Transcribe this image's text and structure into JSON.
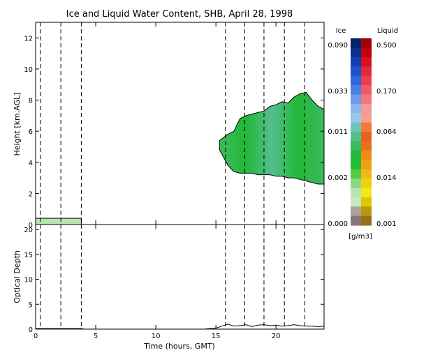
{
  "chart_data": {
    "title": "Ice and Liquid Water Content, SHB, April 28, 1998",
    "top_panel": {
      "type": "heatmap",
      "ylabel": "Height [km,AGL]",
      "xlim": [
        0,
        24
      ],
      "ylim": [
        0,
        13
      ],
      "xticks": [
        0,
        5,
        10,
        15,
        20
      ],
      "yticks": [
        0,
        2,
        4,
        6,
        8,
        10,
        12
      ],
      "ytick_labels": [
        "0",
        "2",
        "4",
        "6",
        "8",
        "10",
        "12"
      ],
      "dashed_times": [
        0.4,
        2.1,
        3.8,
        15.8,
        17.4,
        19.0,
        20.7,
        22.4
      ],
      "cloud_outline_top_km": [
        [
          15.3,
          5.4
        ],
        [
          16.0,
          5.8
        ],
        [
          16.5,
          6.0
        ],
        [
          17.0,
          6.8
        ],
        [
          17.5,
          7.0
        ],
        [
          18.0,
          7.1
        ],
        [
          18.5,
          7.2
        ],
        [
          19.0,
          7.3
        ],
        [
          19.5,
          7.6
        ],
        [
          20.0,
          7.7
        ],
        [
          20.5,
          7.9
        ],
        [
          21.0,
          7.8
        ],
        [
          21.5,
          8.2
        ],
        [
          22.0,
          8.4
        ],
        [
          22.5,
          8.5
        ],
        [
          23.0,
          8.0
        ],
        [
          23.5,
          7.6
        ],
        [
          24.0,
          7.4
        ]
      ],
      "cloud_outline_base_km": [
        [
          15.3,
          4.8
        ],
        [
          16.0,
          3.8
        ],
        [
          16.5,
          3.4
        ],
        [
          17.0,
          3.3
        ],
        [
          17.5,
          3.3
        ],
        [
          18.0,
          3.3
        ],
        [
          18.5,
          3.2
        ],
        [
          19.0,
          3.2
        ],
        [
          19.5,
          3.2
        ],
        [
          20.0,
          3.1
        ],
        [
          20.5,
          3.1
        ],
        [
          21.0,
          3.0
        ],
        [
          21.5,
          3.0
        ],
        [
          22.0,
          2.9
        ],
        [
          22.5,
          2.8
        ],
        [
          23.0,
          2.7
        ],
        [
          23.5,
          2.6
        ],
        [
          24.0,
          2.6
        ]
      ],
      "low_cloud_km": {
        "start": 0.0,
        "end": 3.8,
        "base": 0.0,
        "top": 0.4
      }
    },
    "bottom_panel": {
      "type": "line",
      "ylabel": "Optical Depth",
      "xlabel": "Time (hours, GMT)",
      "xlim": [
        0,
        24
      ],
      "ylim": [
        0,
        21
      ],
      "xticks": [
        0,
        5,
        10,
        15,
        20
      ],
      "xtick_labels": [
        "0",
        "5",
        "10",
        "15",
        "20"
      ],
      "yticks": [
        0,
        5,
        10,
        15,
        20
      ],
      "ytick_labels": [
        "0",
        "5",
        "10",
        "15",
        "20"
      ],
      "x": [
        0,
        1,
        2,
        3,
        3.8,
        4,
        14,
        15,
        15.5,
        16,
        16.5,
        17,
        17.5,
        18,
        18.5,
        19,
        19.5,
        20,
        20.5,
        21,
        21.5,
        22,
        22.5,
        23,
        23.5,
        24
      ],
      "y": [
        0.1,
        0.1,
        0.1,
        0.1,
        0.1,
        0.0,
        0.0,
        0.2,
        0.6,
        1.0,
        0.6,
        0.7,
        0.9,
        0.5,
        0.8,
        0.9,
        0.7,
        0.8,
        0.6,
        0.7,
        0.9,
        0.7,
        0.6,
        0.6,
        0.5,
        0.6
      ]
    },
    "colorbar": {
      "ice_label": "Ice",
      "liquid_label": "Liquid",
      "units": "[g/m3]",
      "ice_tick_labels": [
        "0.090",
        "0.033",
        "0.011",
        "0.002",
        "0.000"
      ],
      "liquid_tick_labels": [
        "0.500",
        "0.170",
        "0.064",
        "0.014",
        "0.001"
      ],
      "ice_colors": [
        "#002266",
        "#0a2f8c",
        "#1240b0",
        "#1e52c8",
        "#2f66d8",
        "#4a7fe0",
        "#6a9ae8",
        "#8ab5ee",
        "#98c8e8",
        "#6fc6b8",
        "#54be8c",
        "#3cba5e",
        "#22b838",
        "#1fc030",
        "#50cc40",
        "#8cd880",
        "#b8e4b0",
        "#c8e8c4",
        "#aaa29a",
        "#887874"
      ],
      "liquid_colors": [
        "#a0000c",
        "#c00010",
        "#d81020",
        "#e02838",
        "#e84050",
        "#ee5a66",
        "#f27880",
        "#f4989c",
        "#f4a08c",
        "#f07838",
        "#e86020",
        "#ec7018",
        "#f08c10",
        "#f0a010",
        "#f0b818",
        "#f0d010",
        "#f0e818",
        "#e0c800",
        "#b89810",
        "#987018"
      ]
    }
  }
}
